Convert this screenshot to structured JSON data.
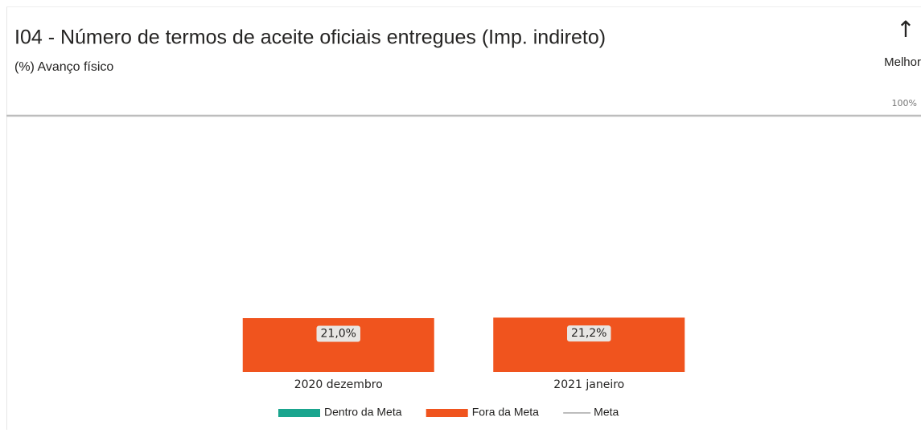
{
  "chart_data": {
    "type": "bar",
    "title": "I04 - Número de termos de aceite oficiais entregues (Imp. indireto)",
    "subtitle": "(%) Avanço físico",
    "direction_icon": "↑",
    "direction_label": "Melhor",
    "categories": [
      "2020 dezembro",
      "2021 janeiro"
    ],
    "series": [
      {
        "name": "Dentro da Meta",
        "color": "#1aa58e",
        "values": [
          null,
          null
        ]
      },
      {
        "name": "Fora da Meta",
        "color": "#f0541e",
        "values": [
          21.0,
          21.2
        ],
        "value_labels": [
          "21,0%",
          "21,2%"
        ]
      }
    ],
    "meta": {
      "name": "Meta",
      "value": 100,
      "label": "100%",
      "color": "#bdbdbd"
    },
    "ylim": [
      0,
      100
    ]
  }
}
